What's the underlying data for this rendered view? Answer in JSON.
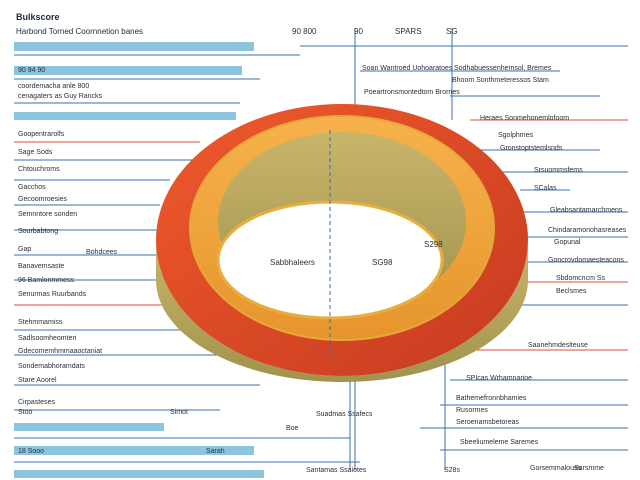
{
  "diagram": {
    "title": "Bulkscore",
    "subtitle": "Harbond Torned Coornnetion banes",
    "top_labels": [
      "90 800",
      "90",
      "SPARS",
      "SG"
    ],
    "center_labels": [
      "Sabbhaleers",
      "SG98",
      "S298"
    ],
    "left_labels": [
      "90 94 90",
      "coordemacha anle 800",
      "cenagaters as Guy Rancks",
      "Goopentrarolfs",
      "Sage Sods",
      "Chtouchroms",
      "Gacchos",
      "Gecoomroesies",
      "Semnntore sonden",
      "Sourbabtong",
      "Gap",
      "Banavemsaste",
      "Bohdcees",
      "96 Bamlonmmess",
      "Senurmas Ruurbands",
      "Stehmmamiss",
      "Sadlsoomheomteri",
      "Gdecomemhmmaaoctaniat",
      "Sondemabhoramdats",
      "Stare Aoorel",
      "Cirpasteses",
      "Stoo",
      "Simot",
      "18 Sooo",
      "Sarah"
    ],
    "right_labels": [
      "Soan Wantroed Uohoaratoes",
      "Sodhabuessenhemsol, Bremes",
      "Bhoom Sonthmeteressos Stam",
      "Poeartronsmontedtom Brornes",
      "Heraes Sonmehonemlofoom",
      "Sgolphmes",
      "Gronstoptstemlsnds",
      "Srsuommsfems",
      "SCalas",
      "Gleabsantamarchmens",
      "Chindaramonohasreases",
      "Gopunal",
      "Goncrovdomaesteacons",
      "Sbdomcncm Ss",
      "Beclsmes",
      "Saanehmdeslteuse",
      "SPIcas Wrhamnarioe",
      "Bathemefronnbhamies",
      "Rusormes",
      "Seroenamsbetoreas",
      "Sbeeliumeleme Saremes",
      "Gorsemmalouss",
      "Sarsmme"
    ],
    "bottom_labels": [
      "Suadmas Ssafecs",
      "Santamas Ssaiotes",
      "S28s",
      "Boe"
    ]
  },
  "colors": {
    "outer_ring": "#e2482a",
    "inner_ring": "#f0a040",
    "band": "#b8a65a",
    "bar_blue": "#8dc4de",
    "line_blue": "#3a6fb0",
    "line_red": "#e04b36"
  }
}
